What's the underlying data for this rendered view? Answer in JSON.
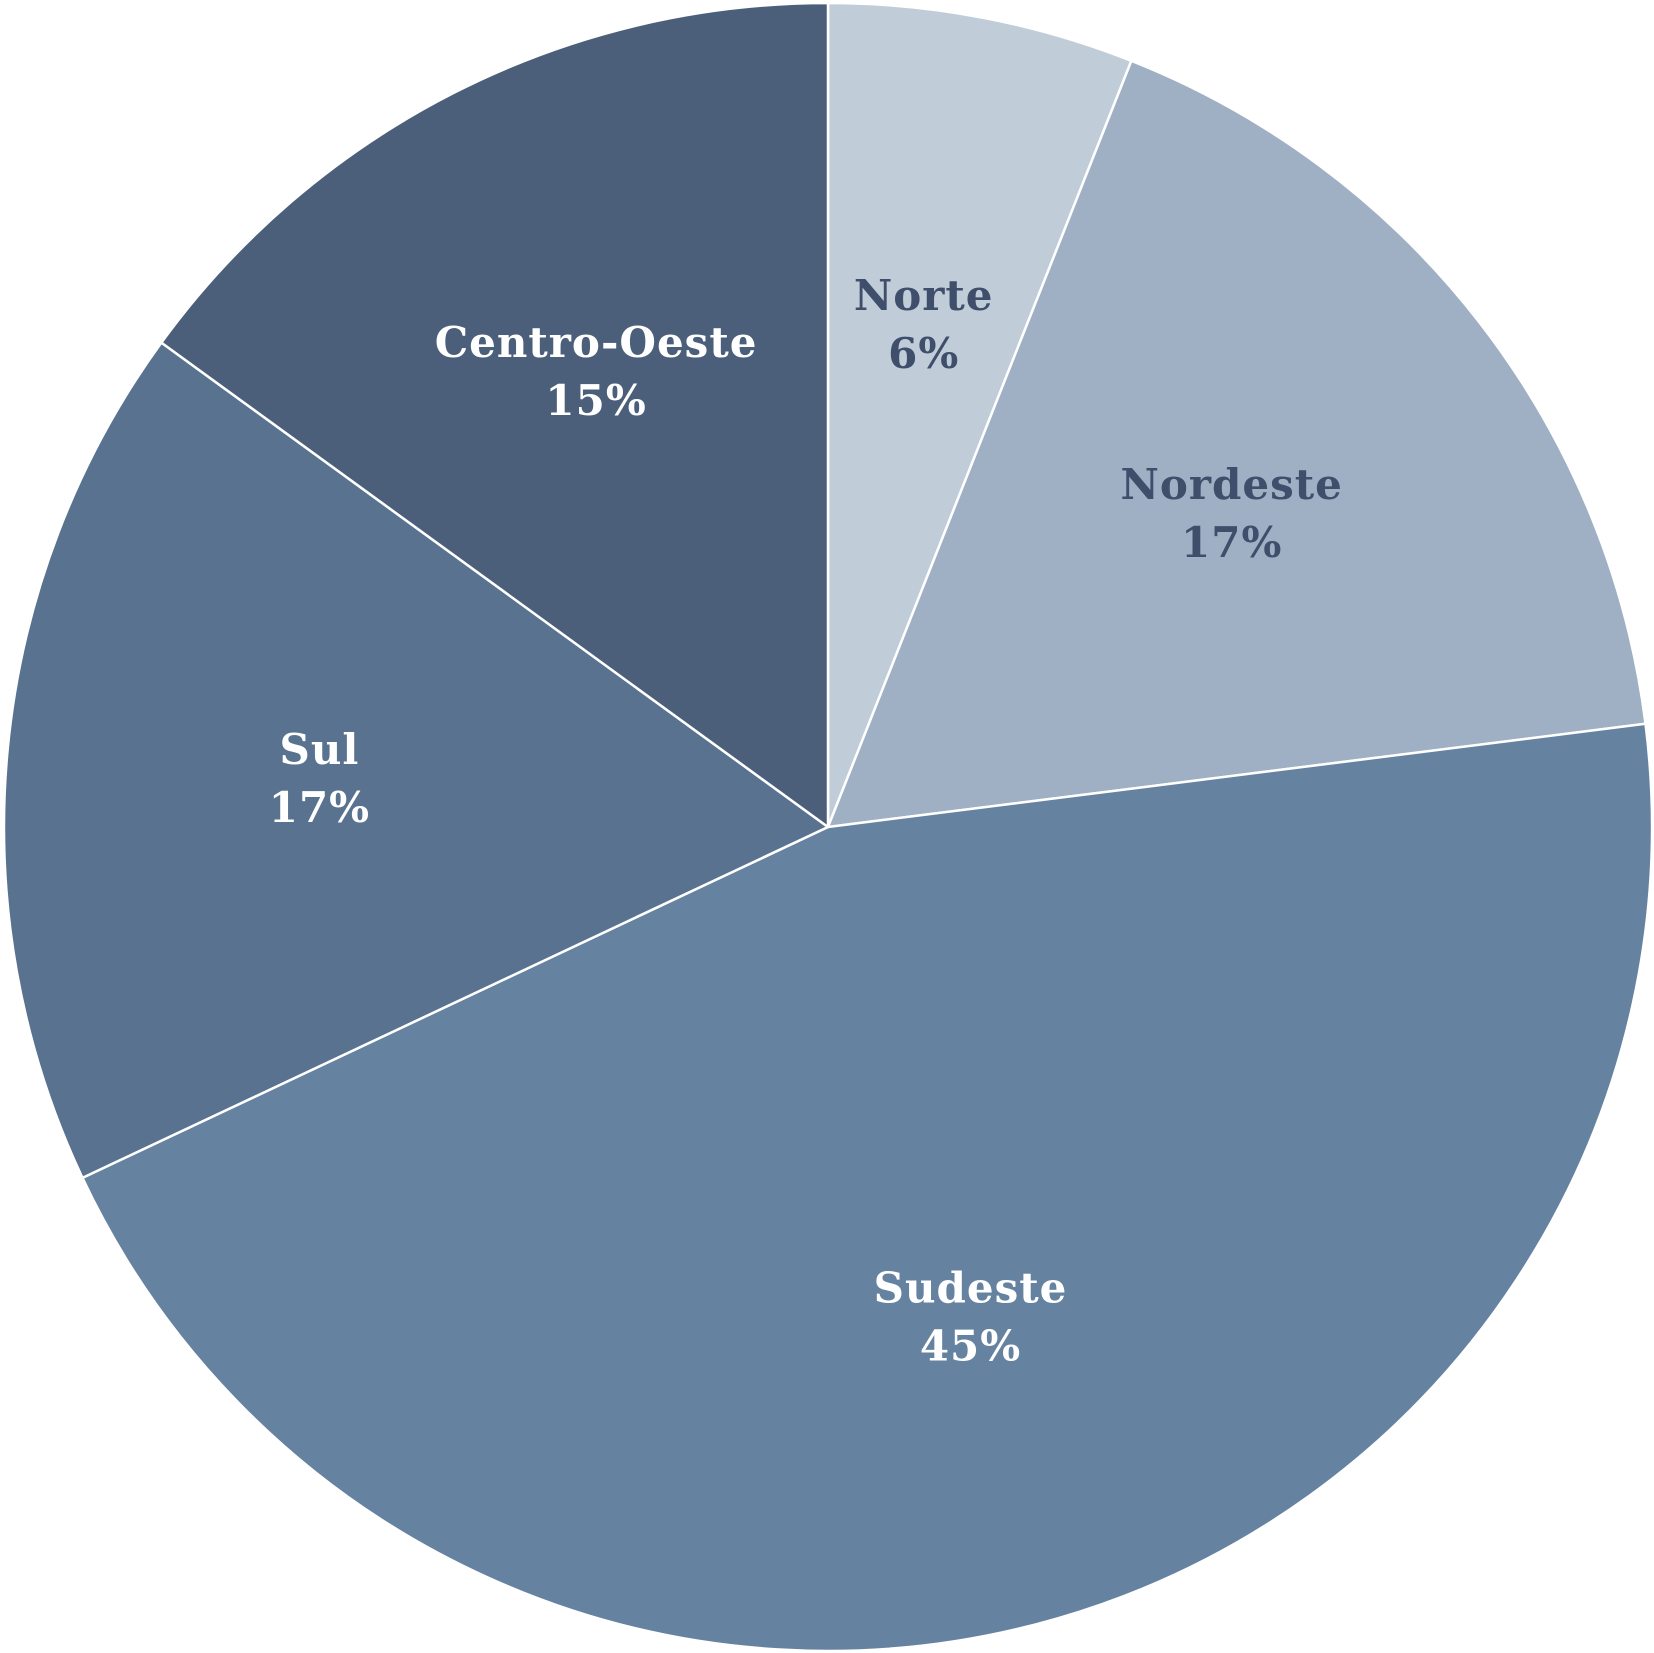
{
  "chart_data": {
    "type": "pie",
    "title": "",
    "start_angle_deg": 0,
    "direction": "clockwise",
    "slices": [
      {
        "label": "Norte",
        "value": 6,
        "pct_label": "6%",
        "color": "#c0cdd9",
        "label_color": "#3f4f6b"
      },
      {
        "label": "Nordeste",
        "value": 17,
        "pct_label": "17%",
        "color": "#9fafc4",
        "label_color": "#3f4f6b"
      },
      {
        "label": "Sudeste",
        "value": 45,
        "pct_label": "45%",
        "color": "#6682a1",
        "label_color": "#ffffff"
      },
      {
        "label": "Sul",
        "value": 17,
        "pct_label": "17%",
        "color": "#58728f",
        "label_color": "#ffffff"
      },
      {
        "label": "Centro-Oeste",
        "value": 15,
        "pct_label": "15%",
        "color": "#4b5f7b",
        "label_color": "#ffffff"
      }
    ]
  }
}
